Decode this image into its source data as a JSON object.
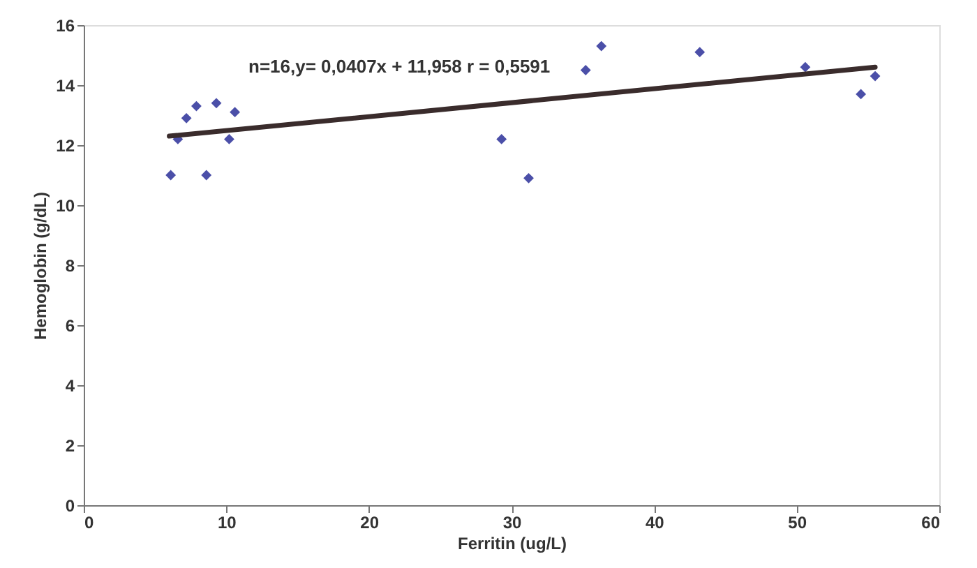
{
  "chart_data": {
    "type": "scatter",
    "xlabel": "Ferritin (ug/L)",
    "ylabel": "Hemoglobin (g/dL)",
    "annotations": [
      "n=16,y= 0,0407x + 11,958 r = 0,5591"
    ],
    "xlim": [
      0,
      60
    ],
    "xticks": [
      0,
      10,
      20,
      30,
      40,
      50,
      60
    ],
    "ylim": [
      0,
      16
    ],
    "yticks": [
      0,
      2,
      4,
      6,
      8,
      10,
      12,
      14,
      16
    ],
    "grid": false,
    "marker": "diamond",
    "series": [
      {
        "color": "#4b4fa8",
        "x": [
          6.1,
          6.6,
          7.2,
          7.9,
          8.6,
          9.3,
          10.2,
          10.6,
          29.3,
          31.2,
          35.2,
          36.3,
          43.2,
          50.6,
          54.5,
          55.5
        ],
        "values": [
          11.0,
          12.2,
          12.9,
          13.3,
          11.0,
          13.4,
          12.2,
          13.1,
          12.2,
          10.9,
          14.5,
          15.3,
          15.1,
          14.6,
          13.7,
          14.3
        ]
      },
      {
        "type": "line",
        "color": "#3a2c2c",
        "x": [
          6.0,
          55.5
        ],
        "values": [
          12.3,
          14.6
        ],
        "line_style": "solid",
        "marker": "none"
      }
    ]
  }
}
